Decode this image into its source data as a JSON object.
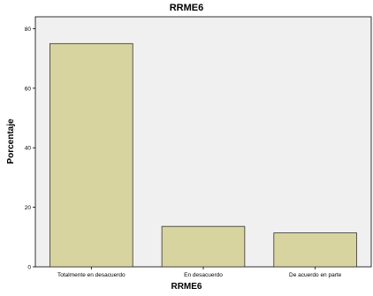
{
  "chart_data": {
    "type": "bar",
    "title": "RRME6",
    "xlabel": "RRME6",
    "ylabel": "Porcentaje",
    "categories": [
      "Totalmente en desacuerdo",
      "En desacuerdo",
      "De acuerdo en parte"
    ],
    "values": [
      75,
      13.6,
      11.4
    ],
    "ylim": [
      0,
      84
    ],
    "yticks": [
      0,
      20,
      40,
      60,
      80
    ],
    "grid": false,
    "colors": {
      "plot_background": "#f0f0f0",
      "bar_fill": "#d8d4a0",
      "bar_stroke": "#333333"
    }
  }
}
